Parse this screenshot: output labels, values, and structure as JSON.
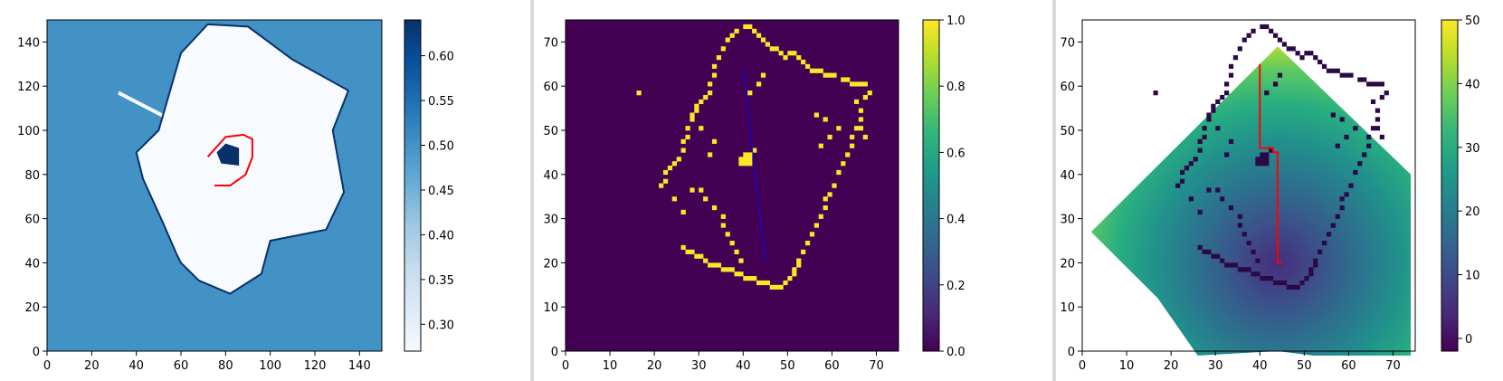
{
  "chart_data": [
    {
      "type": "heatmap",
      "title": "",
      "xlabel": "",
      "ylabel": "",
      "xlim": [
        0,
        150
      ],
      "ylim": [
        0,
        150
      ],
      "xticks": [
        "0",
        "20",
        "40",
        "60",
        "80",
        "100",
        "120",
        "140"
      ],
      "yticks": [
        "0",
        "20",
        "40",
        "60",
        "80",
        "100",
        "120",
        "140"
      ],
      "colormap": "Blues",
      "colorbar_ticks": [
        "0.30",
        "0.35",
        "0.40",
        "0.45",
        "0.50",
        "0.55",
        "0.60"
      ],
      "colorbar_range": [
        0.27,
        0.64
      ],
      "background_value": 0.5,
      "free_space_value": 0.27,
      "obstacle_value": 0.64,
      "background_color": "#4292c6",
      "free_color": "#f7fbff",
      "obstacle_color": "#08306b",
      "free_region_outline": [
        [
          68,
          32
        ],
        [
          82,
          26
        ],
        [
          96,
          35
        ],
        [
          100,
          50
        ],
        [
          125,
          55
        ],
        [
          133,
          72
        ],
        [
          128,
          100
        ],
        [
          135,
          118
        ],
        [
          110,
          132
        ],
        [
          90,
          147
        ],
        [
          72,
          148
        ],
        [
          60,
          135
        ],
        [
          50,
          100
        ],
        [
          40,
          90
        ],
        [
          43,
          78
        ],
        [
          52,
          58
        ],
        [
          58,
          44
        ],
        [
          60,
          40
        ]
      ],
      "free_region_ray": [
        [
          32,
          117
        ],
        [
          55,
          105
        ]
      ],
      "obstacle_blob": [
        [
          78,
          85
        ],
        [
          86,
          84
        ],
        [
          86,
          92
        ],
        [
          80,
          94
        ],
        [
          76,
          90
        ]
      ],
      "path_color": "#ff0000",
      "path": [
        [
          75,
          75
        ],
        [
          82,
          75
        ],
        [
          89,
          80
        ],
        [
          92,
          88
        ],
        [
          92,
          96
        ],
        [
          88,
          98
        ],
        [
          80,
          97
        ],
        [
          72,
          88
        ]
      ]
    },
    {
      "type": "heatmap",
      "title": "",
      "xlabel": "",
      "ylabel": "",
      "xlim": [
        0,
        75
      ],
      "ylim": [
        0,
        75
      ],
      "xticks": [
        "0",
        "10",
        "20",
        "30",
        "40",
        "50",
        "60",
        "70"
      ],
      "yticks": [
        "0",
        "10",
        "20",
        "30",
        "40",
        "50",
        "60",
        "70"
      ],
      "colormap": "viridis",
      "colorbar_ticks": [
        "0.0",
        "0.2",
        "0.4",
        "0.6",
        "0.8",
        "1.0"
      ],
      "colorbar_range": [
        0,
        1
      ],
      "background_color": "#440154",
      "occupied_color": "#fde725",
      "occupied_cells": [
        [
          40,
          73
        ],
        [
          41,
          73
        ],
        [
          42,
          72
        ],
        [
          38,
          72
        ],
        [
          37,
          71
        ],
        [
          36,
          70
        ],
        [
          43,
          71
        ],
        [
          44,
          70
        ],
        [
          45,
          69
        ],
        [
          46,
          68
        ],
        [
          47,
          68
        ],
        [
          48,
          67
        ],
        [
          49,
          66
        ],
        [
          50,
          67
        ],
        [
          51,
          67
        ],
        [
          52,
          66
        ],
        [
          53,
          65
        ],
        [
          54,
          64
        ],
        [
          55,
          63
        ],
        [
          56,
          63
        ],
        [
          57,
          63
        ],
        [
          58,
          62
        ],
        [
          59,
          62
        ],
        [
          60,
          62
        ],
        [
          62,
          61
        ],
        [
          63,
          61
        ],
        [
          64,
          60
        ],
        [
          65,
          60
        ],
        [
          66,
          60
        ],
        [
          67,
          60
        ],
        [
          35,
          68
        ],
        [
          34,
          66
        ],
        [
          33,
          64
        ],
        [
          33,
          62
        ],
        [
          32,
          60
        ],
        [
          32,
          58
        ],
        [
          31,
          57
        ],
        [
          30,
          56
        ],
        [
          29,
          55
        ],
        [
          29,
          54
        ],
        [
          28,
          53
        ],
        [
          28,
          52
        ],
        [
          27,
          50
        ],
        [
          27,
          48
        ],
        [
          26,
          47
        ],
        [
          26,
          45
        ],
        [
          25,
          43
        ],
        [
          24,
          42
        ],
        [
          23,
          41
        ],
        [
          22,
          40
        ],
        [
          22,
          38
        ],
        [
          21,
          37
        ],
        [
          16,
          58
        ],
        [
          30,
          50
        ],
        [
          33,
          47
        ],
        [
          32,
          44
        ],
        [
          24,
          34
        ],
        [
          26,
          31
        ],
        [
          26,
          23
        ],
        [
          27,
          22
        ],
        [
          28,
          22
        ],
        [
          29,
          21
        ],
        [
          30,
          21
        ],
        [
          31,
          20
        ],
        [
          32,
          19
        ],
        [
          33,
          19
        ],
        [
          34,
          19
        ],
        [
          35,
          18
        ],
        [
          36,
          18
        ],
        [
          37,
          18
        ],
        [
          38,
          17
        ],
        [
          39,
          17
        ],
        [
          40,
          16
        ],
        [
          41,
          16
        ],
        [
          42,
          16
        ],
        [
          43,
          15
        ],
        [
          44,
          15
        ],
        [
          45,
          15
        ],
        [
          46,
          14
        ],
        [
          47,
          14
        ],
        [
          48,
          14
        ],
        [
          49,
          15
        ],
        [
          50,
          16
        ],
        [
          51,
          17
        ],
        [
          51,
          18
        ],
        [
          52,
          19
        ],
        [
          52,
          20
        ],
        [
          53,
          22
        ],
        [
          54,
          24
        ],
        [
          55,
          26
        ],
        [
          56,
          28
        ],
        [
          57,
          30
        ],
        [
          58,
          32
        ],
        [
          58,
          34
        ],
        [
          59,
          35
        ],
        [
          60,
          37
        ],
        [
          61,
          40
        ],
        [
          62,
          42
        ],
        [
          63,
          44
        ],
        [
          64,
          46
        ],
        [
          64,
          48
        ],
        [
          65,
          50
        ],
        [
          66,
          52
        ],
        [
          66,
          54
        ],
        [
          65,
          56
        ],
        [
          67,
          57
        ],
        [
          68,
          58
        ],
        [
          28,
          36
        ],
        [
          30,
          36
        ],
        [
          31,
          34
        ],
        [
          33,
          32
        ],
        [
          35,
          30
        ],
        [
          35,
          28
        ],
        [
          36,
          26
        ],
        [
          37,
          24
        ],
        [
          38,
          22
        ],
        [
          39,
          20
        ],
        [
          57,
          46
        ],
        [
          59,
          48
        ],
        [
          61,
          50
        ],
        [
          58,
          52
        ],
        [
          56,
          53
        ],
        [
          66,
          50
        ],
        [
          67,
          48
        ],
        [
          41,
          58
        ],
        [
          43,
          60
        ],
        [
          44,
          62
        ],
        [
          39,
          43
        ],
        [
          40,
          43
        ],
        [
          41,
          43
        ],
        [
          40,
          42
        ],
        [
          41,
          44
        ],
        [
          42,
          45
        ],
        [
          40,
          44
        ],
        [
          39,
          42
        ],
        [
          41,
          42
        ]
      ],
      "trajectory_color": "#0000ff",
      "trajectory": [
        [
          40,
          64
        ],
        [
          45,
          20
        ]
      ]
    },
    {
      "type": "heatmap",
      "title": "",
      "xlabel": "",
      "ylabel": "",
      "xlim": [
        0,
        75
      ],
      "ylim": [
        0,
        75
      ],
      "xticks": [
        "0",
        "10",
        "20",
        "30",
        "40",
        "50",
        "60",
        "70"
      ],
      "yticks": [
        "0",
        "10",
        "20",
        "30",
        "40",
        "50",
        "60",
        "70"
      ],
      "colormap": "viridis",
      "colorbar_ticks": [
        "0",
        "10",
        "20",
        "30",
        "40",
        "50"
      ],
      "colorbar_range": [
        -2,
        50
      ],
      "diamond_center": [
        44,
        20
      ],
      "diamond_vertices": [
        [
          44,
          69
        ],
        [
          74,
          40
        ],
        [
          74,
          -1
        ],
        [
          52,
          -1
        ],
        [
          44,
          0
        ],
        [
          26,
          -1
        ],
        [
          17,
          12
        ],
        [
          2,
          27
        ]
      ],
      "obstacle_color": "#2b0846",
      "obstacle_cells": [
        [
          40,
          73
        ],
        [
          41,
          73
        ],
        [
          42,
          72
        ],
        [
          38,
          72
        ],
        [
          37,
          71
        ],
        [
          36,
          70
        ],
        [
          43,
          71
        ],
        [
          44,
          70
        ],
        [
          45,
          69
        ],
        [
          46,
          68
        ],
        [
          47,
          68
        ],
        [
          48,
          67
        ],
        [
          49,
          66
        ],
        [
          50,
          67
        ],
        [
          51,
          67
        ],
        [
          52,
          66
        ],
        [
          53,
          65
        ],
        [
          54,
          64
        ],
        [
          55,
          63
        ],
        [
          56,
          63
        ],
        [
          57,
          63
        ],
        [
          58,
          62
        ],
        [
          59,
          62
        ],
        [
          60,
          62
        ],
        [
          62,
          61
        ],
        [
          63,
          61
        ],
        [
          64,
          60
        ],
        [
          65,
          60
        ],
        [
          66,
          60
        ],
        [
          67,
          60
        ],
        [
          35,
          68
        ],
        [
          34,
          66
        ],
        [
          33,
          64
        ],
        [
          33,
          62
        ],
        [
          32,
          60
        ],
        [
          32,
          58
        ],
        [
          31,
          57
        ],
        [
          30,
          56
        ],
        [
          29,
          55
        ],
        [
          29,
          54
        ],
        [
          28,
          53
        ],
        [
          28,
          52
        ],
        [
          27,
          50
        ],
        [
          27,
          48
        ],
        [
          26,
          47
        ],
        [
          26,
          45
        ],
        [
          25,
          43
        ],
        [
          24,
          42
        ],
        [
          23,
          41
        ],
        [
          22,
          40
        ],
        [
          22,
          38
        ],
        [
          21,
          37
        ],
        [
          16,
          58
        ],
        [
          30,
          50
        ],
        [
          33,
          47
        ],
        [
          32,
          44
        ],
        [
          24,
          34
        ],
        [
          26,
          31
        ],
        [
          26,
          23
        ],
        [
          27,
          22
        ],
        [
          28,
          22
        ],
        [
          29,
          21
        ],
        [
          30,
          21
        ],
        [
          31,
          20
        ],
        [
          32,
          19
        ],
        [
          33,
          19
        ],
        [
          34,
          19
        ],
        [
          35,
          18
        ],
        [
          36,
          18
        ],
        [
          37,
          18
        ],
        [
          38,
          17
        ],
        [
          39,
          17
        ],
        [
          40,
          16
        ],
        [
          41,
          16
        ],
        [
          42,
          16
        ],
        [
          43,
          15
        ],
        [
          44,
          15
        ],
        [
          45,
          15
        ],
        [
          46,
          14
        ],
        [
          47,
          14
        ],
        [
          48,
          14
        ],
        [
          49,
          15
        ],
        [
          50,
          16
        ],
        [
          51,
          17
        ],
        [
          51,
          18
        ],
        [
          52,
          19
        ],
        [
          52,
          20
        ],
        [
          53,
          22
        ],
        [
          54,
          24
        ],
        [
          55,
          26
        ],
        [
          56,
          28
        ],
        [
          57,
          30
        ],
        [
          58,
          32
        ],
        [
          58,
          34
        ],
        [
          59,
          35
        ],
        [
          60,
          37
        ],
        [
          61,
          40
        ],
        [
          62,
          42
        ],
        [
          63,
          44
        ],
        [
          64,
          46
        ],
        [
          64,
          48
        ],
        [
          65,
          50
        ],
        [
          66,
          52
        ],
        [
          66,
          54
        ],
        [
          65,
          56
        ],
        [
          67,
          57
        ],
        [
          68,
          58
        ],
        [
          28,
          36
        ],
        [
          30,
          36
        ],
        [
          31,
          34
        ],
        [
          33,
          32
        ],
        [
          35,
          30
        ],
        [
          35,
          28
        ],
        [
          36,
          26
        ],
        [
          37,
          24
        ],
        [
          38,
          22
        ],
        [
          39,
          20
        ],
        [
          57,
          46
        ],
        [
          59,
          48
        ],
        [
          61,
          50
        ],
        [
          58,
          52
        ],
        [
          56,
          53
        ],
        [
          66,
          50
        ],
        [
          67,
          48
        ],
        [
          41,
          58
        ],
        [
          43,
          60
        ],
        [
          44,
          62
        ],
        [
          39,
          43
        ],
        [
          40,
          43
        ],
        [
          41,
          43
        ],
        [
          40,
          42
        ],
        [
          41,
          44
        ],
        [
          42,
          45
        ],
        [
          40,
          44
        ],
        [
          39,
          42
        ],
        [
          41,
          42
        ]
      ],
      "path_color": "#ff0000",
      "path": [
        [
          40,
          65
        ],
        [
          40,
          46
        ],
        [
          43,
          46
        ],
        [
          43,
          45
        ],
        [
          44,
          45
        ],
        [
          44,
          20
        ],
        [
          45,
          20
        ]
      ]
    }
  ]
}
